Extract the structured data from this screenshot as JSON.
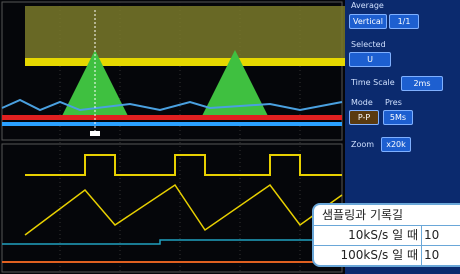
{
  "sidebar": {
    "header": "Average",
    "vertical": "Vertical",
    "vertical_value": "1/1",
    "selected": "Selected",
    "selected_value": "U",
    "time_scale": "Time Scale",
    "time_value": "2ms",
    "mode": "Mode",
    "pres": "Pres",
    "mode_value": "P-P",
    "pres_value": "5Ms",
    "zoom": "Zoom",
    "zoom_value": "x20k"
  },
  "table": {
    "title": "샘플링과 기록길",
    "rows": [
      [
        "10kS/s 일 때",
        "10"
      ],
      [
        "100kS/s 일 때",
        "10"
      ]
    ]
  }
}
